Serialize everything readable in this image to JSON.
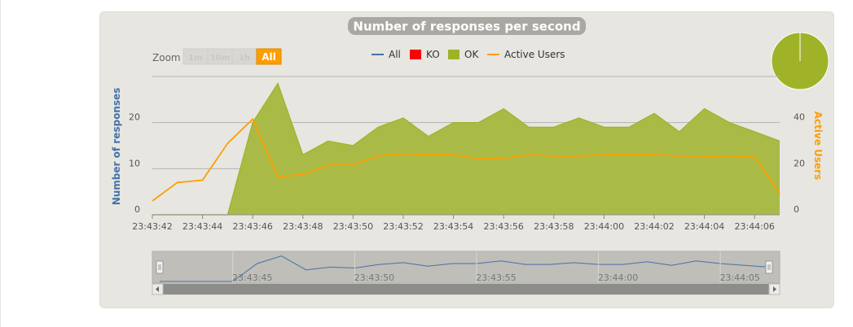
{
  "colors": {
    "panel_bg": "#e7e6e1",
    "title_bg": "#a9a8a3",
    "all": "#4572a7",
    "ko": "#ff0000",
    "ok": "#a0b228",
    "ok_fill": "#a9bb46",
    "active_users": "#ff9d00",
    "axis_left_title": "#4572a7",
    "axis_right_title": "#ff9d00",
    "zoom_selected": "#ff9d00"
  },
  "zoom": {
    "label": "Zoom",
    "buttons": [
      "1m",
      "10m",
      "1h",
      "All"
    ],
    "selected": "All"
  },
  "legend": {
    "items": [
      {
        "label": "All",
        "symbol": "line",
        "color": "#4572a7"
      },
      {
        "label": "KO",
        "symbol": "square",
        "color": "#ff0000"
      },
      {
        "label": "OK",
        "symbol": "square",
        "color": "#a0b228"
      },
      {
        "label": "Active Users",
        "symbol": "line",
        "color": "#ff9d00"
      }
    ]
  },
  "pie": {
    "slices": [
      {
        "name": "OK",
        "value": 100,
        "color": "#a0b228"
      },
      {
        "name": "KO",
        "value": 0,
        "color": "#ff0000"
      }
    ]
  },
  "chart_data": {
    "type": "area",
    "title": "Number of responses per second",
    "ylabel": "Number of responses",
    "y2label": "Active Users",
    "ylim": [
      0,
      30
    ],
    "y2lim": [
      0,
      60
    ],
    "yticks": [
      0,
      10,
      20
    ],
    "y2ticks": [
      0,
      20,
      40
    ],
    "grid": true,
    "legend_position": "top",
    "xticks": [
      "23:43:42",
      "23:43:44",
      "23:43:46",
      "23:43:48",
      "23:43:50",
      "23:43:52",
      "23:43:54",
      "23:43:56",
      "23:43:58",
      "23:44:00",
      "23:44:02",
      "23:44:04",
      "23:44:06"
    ],
    "x": [
      "23:43:42",
      "23:43:43",
      "23:43:44",
      "23:43:45",
      "23:43:46",
      "23:43:47",
      "23:43:48",
      "23:43:49",
      "23:43:50",
      "23:43:51",
      "23:43:52",
      "23:43:53",
      "23:43:54",
      "23:43:55",
      "23:43:56",
      "23:43:57",
      "23:43:58",
      "23:43:59",
      "23:44:00",
      "23:44:01",
      "23:44:02",
      "23:44:03",
      "23:44:04",
      "23:44:05",
      "23:44:06",
      "23:44:07"
    ],
    "series": [
      {
        "name": "All",
        "axis": "left",
        "values": [
          0,
          0,
          0,
          0,
          20,
          28.5,
          13,
          16,
          15,
          19,
          21,
          17,
          20,
          20,
          23,
          19,
          19,
          21,
          19,
          19,
          22,
          18,
          23,
          20,
          18,
          16
        ]
      },
      {
        "name": "KO",
        "axis": "left",
        "values": [
          0,
          0,
          0,
          0,
          0,
          0,
          0,
          0,
          0,
          0,
          0,
          0,
          0,
          0,
          0,
          0,
          0,
          0,
          0,
          0,
          0,
          0,
          0,
          0,
          0,
          0
        ]
      },
      {
        "name": "OK",
        "axis": "left",
        "values": [
          0,
          0,
          0,
          0,
          20,
          28.5,
          13,
          16,
          15,
          19,
          21,
          17,
          20,
          20,
          23,
          19,
          19,
          21,
          19,
          19,
          22,
          18,
          23,
          20,
          18,
          16
        ]
      },
      {
        "name": "Active Users",
        "axis": "right",
        "values": [
          6,
          14,
          15,
          31,
          41.5,
          16.5,
          17.5,
          21.5,
          21.5,
          25.5,
          26.5,
          26,
          26,
          24.5,
          24.5,
          26,
          25.5,
          25.5,
          26,
          26,
          26,
          25.5,
          25.5,
          25,
          25.5,
          9
        ]
      }
    ],
    "navigator": {
      "xticks": [
        "23:43:45",
        "23:43:50",
        "23:43:55",
        "23:44:00",
        "23:44:05"
      ]
    }
  }
}
